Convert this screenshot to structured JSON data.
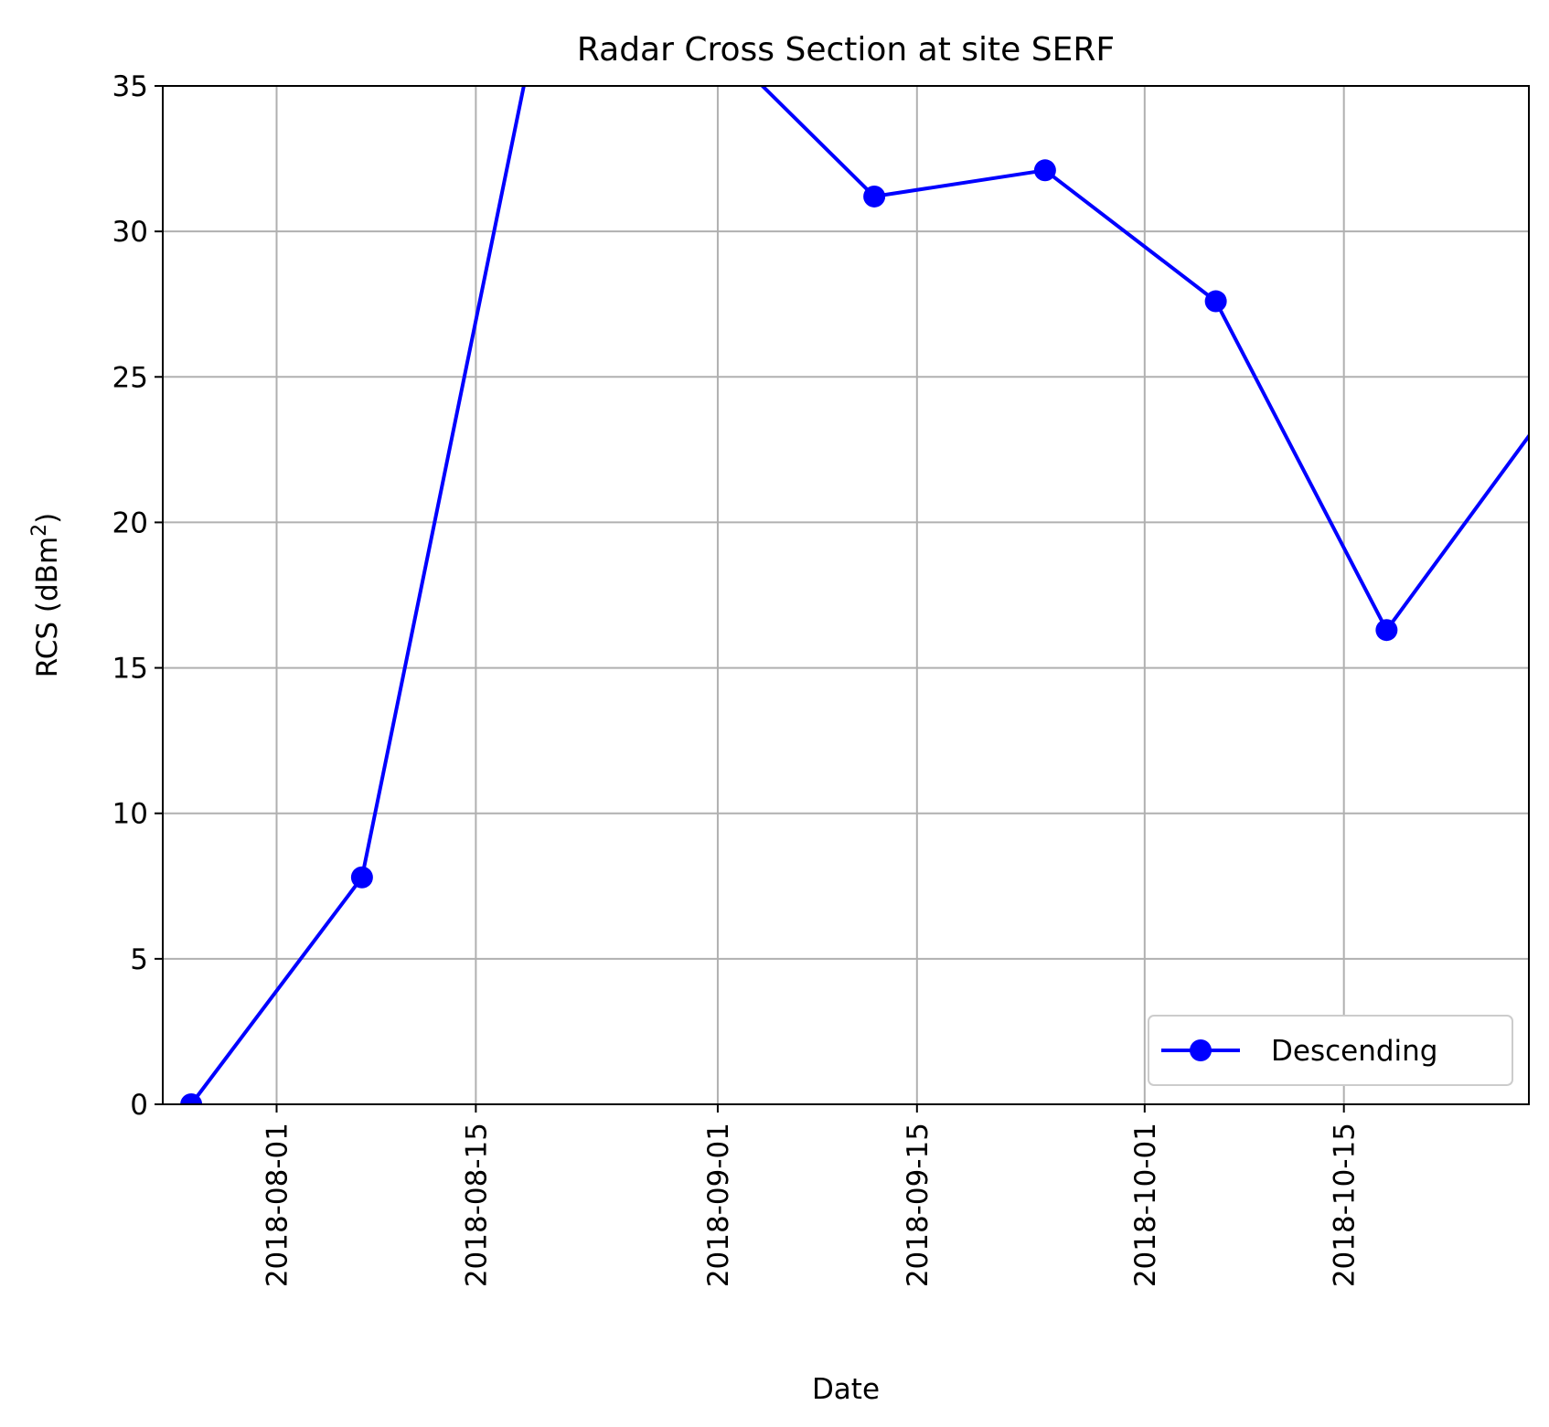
{
  "chart_data": {
    "type": "line",
    "title": "Radar Cross Section at site SERF",
    "xlabel": "Date",
    "ylabel": "RCS (dBm",
    "ylabel_superscript": "2",
    "ylabel_suffix": ")",
    "ylim": [
      0,
      35
    ],
    "xlim": [
      "2018-07-24",
      "2018-10-28"
    ],
    "y_ticks": [
      0,
      5,
      10,
      15,
      20,
      25,
      30,
      35
    ],
    "x_ticks": [
      "2018-08-01",
      "2018-08-15",
      "2018-09-01",
      "2018-09-15",
      "2018-10-01",
      "2018-10-15"
    ],
    "grid": true,
    "legend_position": "lower-right",
    "series": [
      {
        "name": "Descending",
        "color": "#0000ff",
        "marker": "circle",
        "x": [
          "2018-07-26",
          "2018-08-07",
          "2018-08-19",
          "2018-08-31",
          "2018-09-12",
          "2018-09-24",
          "2018-10-06",
          "2018-10-18",
          "2018-10-30"
        ],
        "y": [
          0.0,
          7.8,
          36.5,
          37.0,
          31.2,
          32.1,
          27.6,
          16.3,
          24.3
        ]
      }
    ]
  }
}
